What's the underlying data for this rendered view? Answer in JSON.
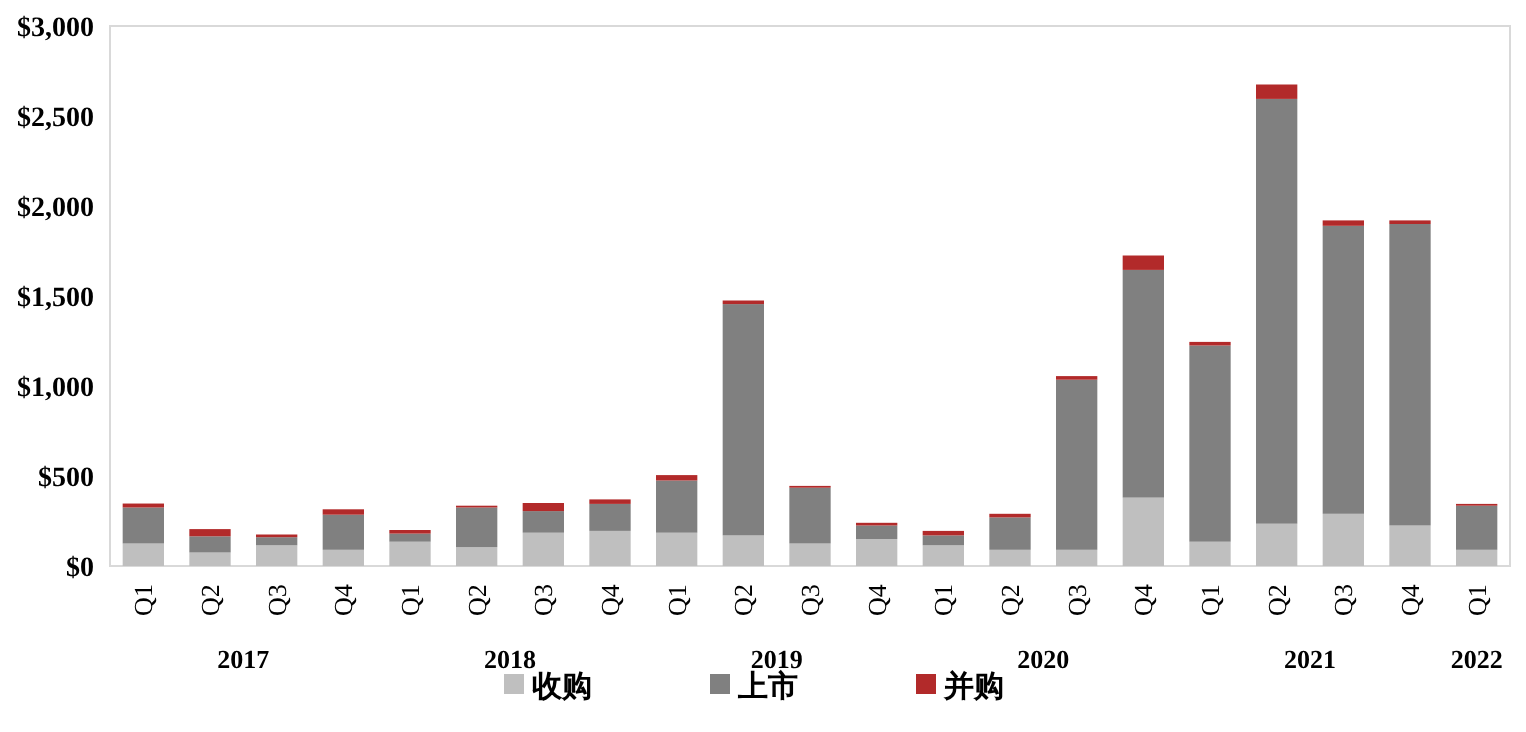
{
  "chart_data": {
    "type": "bar",
    "stacked": true,
    "categories": [
      "Q1",
      "Q2",
      "Q3",
      "Q4",
      "Q1",
      "Q2",
      "Q3",
      "Q4",
      "Q1",
      "Q2",
      "Q3",
      "Q4",
      "Q1",
      "Q2",
      "Q3",
      "Q4",
      "Q1",
      "Q2",
      "Q3",
      "Q4",
      "Q1"
    ],
    "series": [
      {
        "name": "收购",
        "color": "#bfbfbf",
        "values": [
          125,
          75,
          115,
          90,
          135,
          105,
          185,
          195,
          185,
          170,
          125,
          150,
          115,
          90,
          90,
          380,
          135,
          235,
          290,
          225,
          90
        ]
      },
      {
        "name": "上市",
        "color": "#808080",
        "values": [
          200,
          90,
          45,
          195,
          45,
          220,
          120,
          150,
          290,
          1285,
          310,
          75,
          55,
          180,
          945,
          1265,
          1090,
          2360,
          1600,
          1675,
          245
        ]
      },
      {
        "name": "并购",
        "color": "#b22a2a",
        "values": [
          22,
          40,
          15,
          30,
          20,
          10,
          45,
          25,
          30,
          20,
          10,
          15,
          25,
          20,
          20,
          80,
          20,
          80,
          30,
          20,
          10
        ]
      }
    ],
    "ylim": [
      0,
      3000
    ],
    "yticks": [
      {
        "value": 0,
        "label": "$0"
      },
      {
        "value": 500,
        "label": "$500"
      },
      {
        "value": 1000,
        "label": "$1,000"
      },
      {
        "value": 1500,
        "label": "$1,500"
      },
      {
        "value": 2000,
        "label": "$2,000"
      },
      {
        "value": 2500,
        "label": "$2,500"
      },
      {
        "value": 3000,
        "label": "$3,000"
      }
    ],
    "annotations": [
      "2017",
      "2018",
      "2019",
      "2020",
      "2021",
      "2022"
    ],
    "grid": false,
    "legend": "bottom"
  }
}
